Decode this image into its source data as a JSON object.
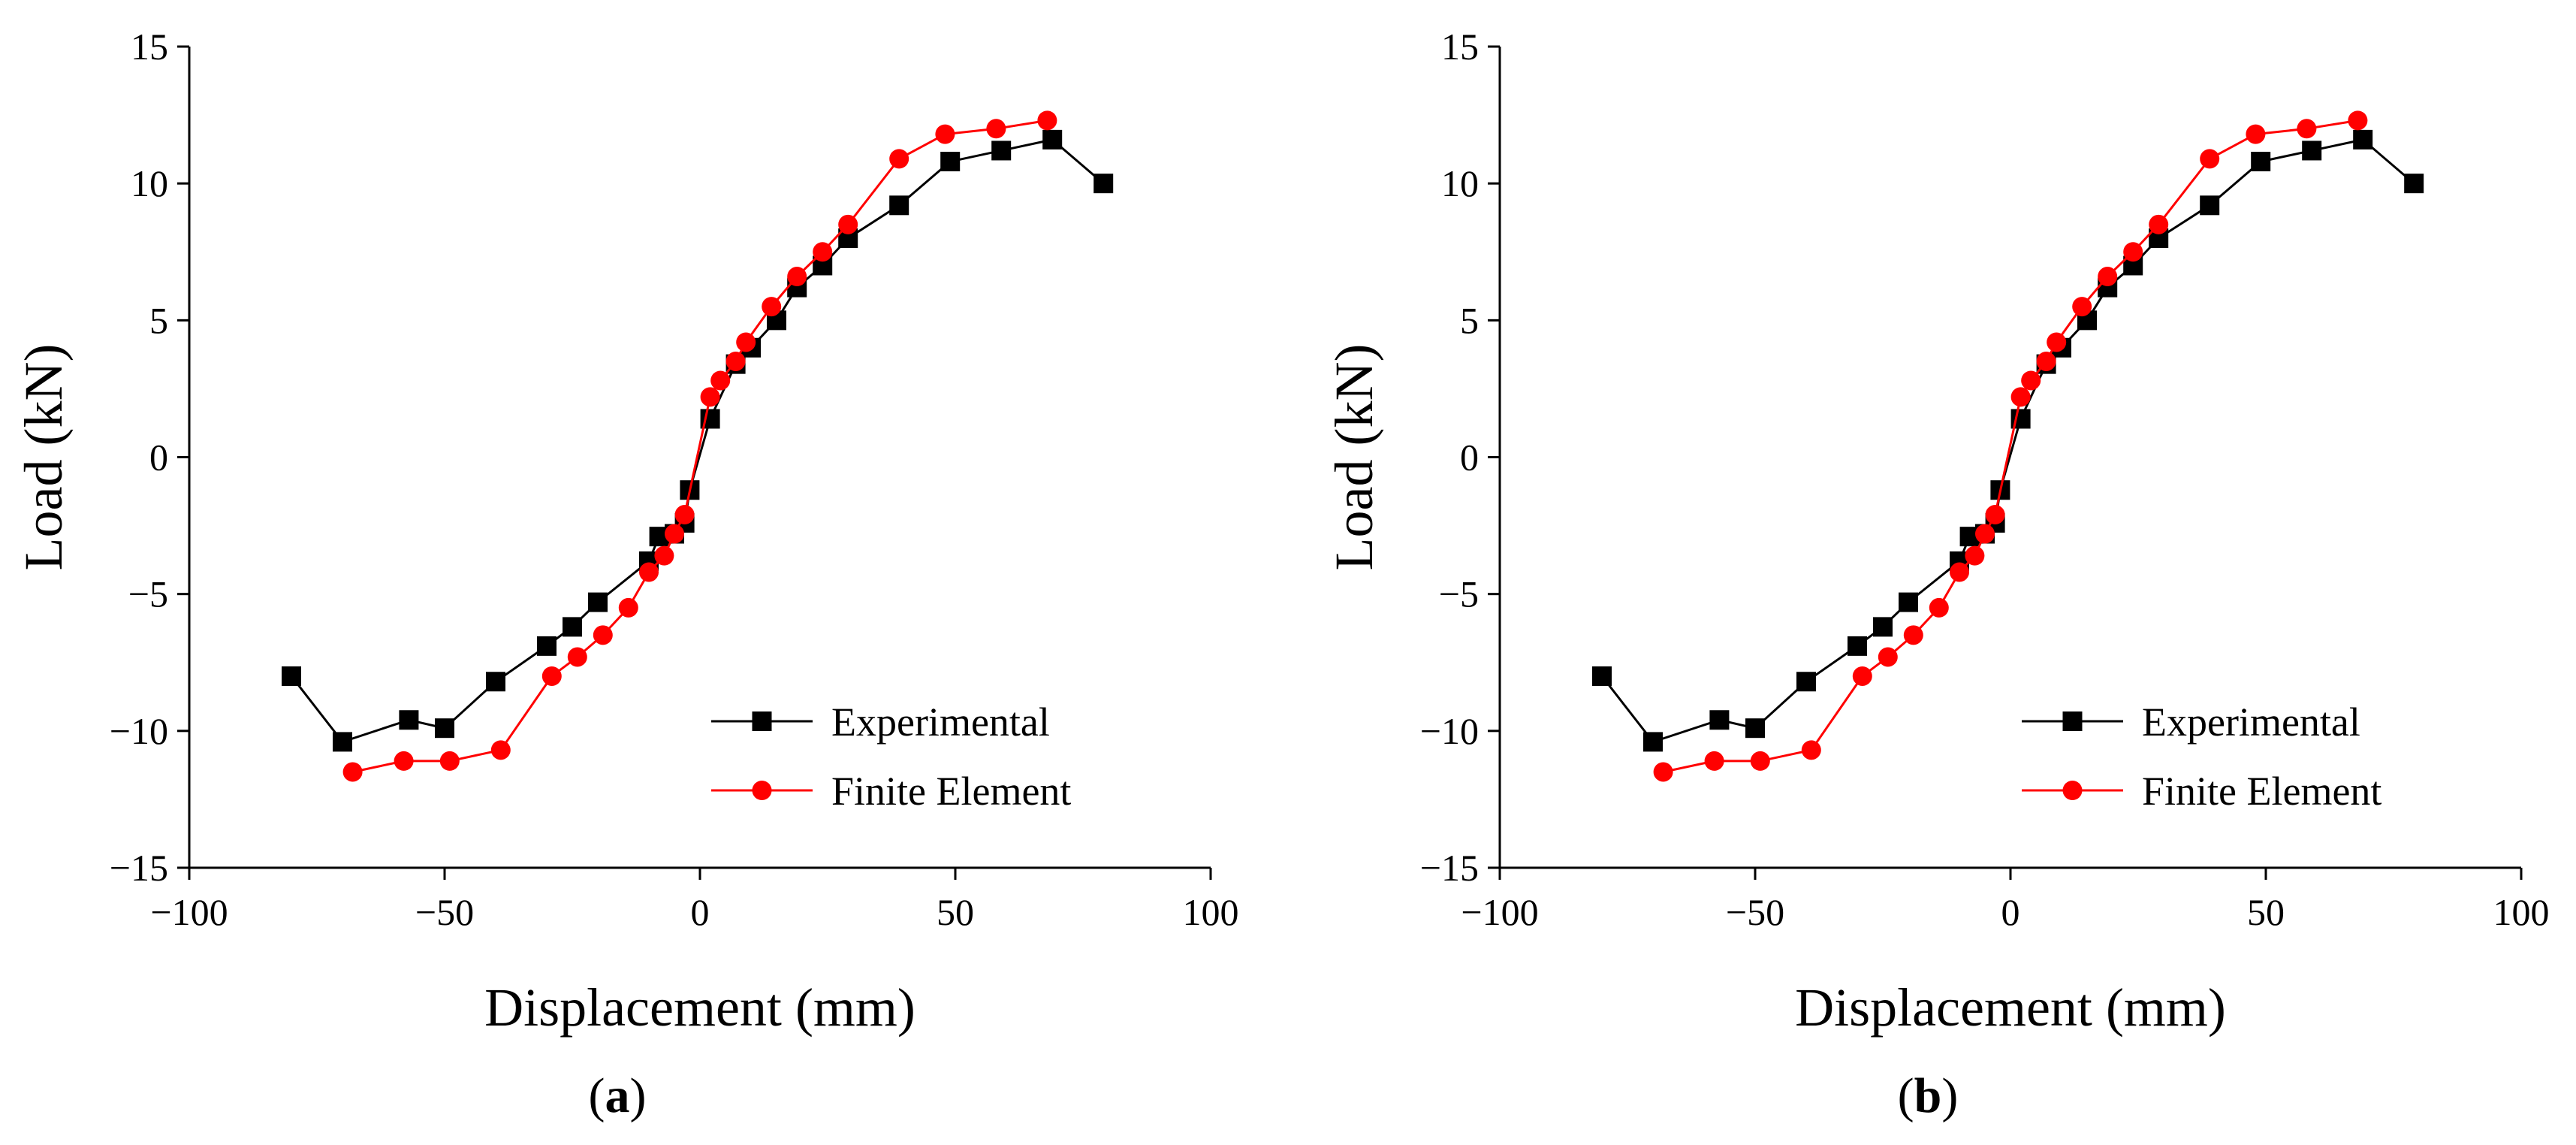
{
  "figure": {
    "panel_labels": [
      {
        "open": "(",
        "letter": "a",
        "close": ")"
      },
      {
        "open": "(",
        "letter": "b",
        "close": ")"
      }
    ]
  },
  "chart_data": [
    {
      "type": "line",
      "panel": "a",
      "title": "",
      "xlabel": "Displacement (mm)",
      "ylabel": "Load (kN)",
      "xlim": [
        -100,
        100
      ],
      "ylim": [
        -15,
        15
      ],
      "xticks": [
        -100,
        -50,
        0,
        50,
        100
      ],
      "xtick_labels": [
        "−100",
        "−50",
        "0",
        "50",
        "100"
      ],
      "yticks": [
        -15,
        -10,
        -5,
        0,
        5,
        10,
        15
      ],
      "ytick_labels": [
        "−15",
        "−10",
        "−5",
        "0",
        "5",
        "10",
        "15"
      ],
      "grid": false,
      "legend_position": "bottom-right",
      "series": [
        {
          "name": "Experimental",
          "color": "#000000",
          "marker": "square",
          "x": [
            -80,
            -70,
            -57,
            -50,
            -40,
            -30,
            -25,
            -20,
            -10,
            -8,
            -5,
            -3,
            -2,
            2,
            7,
            10,
            15,
            19,
            24,
            29,
            39,
            49,
            59,
            69,
            79
          ],
          "y": [
            -8.0,
            -10.4,
            -9.6,
            -9.9,
            -8.2,
            -6.9,
            -6.2,
            -5.3,
            -3.8,
            -2.9,
            -2.8,
            -2.4,
            -1.2,
            1.4,
            3.4,
            4.0,
            5.0,
            6.2,
            7.0,
            8.0,
            9.2,
            10.8,
            11.2,
            11.6,
            10.0
          ]
        },
        {
          "name": "Finite Element",
          "color": "#ff0000",
          "marker": "circle",
          "x": [
            -68,
            -58,
            -49,
            -39,
            -29,
            -24,
            -19,
            -14,
            -10,
            -7,
            -5,
            -3,
            2,
            4,
            7,
            9,
            14,
            19,
            24,
            29,
            39,
            48,
            58,
            68
          ],
          "y": [
            -11.5,
            -11.1,
            -11.1,
            -10.7,
            -8.0,
            -7.3,
            -6.5,
            -5.5,
            -4.2,
            -3.6,
            -2.8,
            -2.1,
            2.2,
            2.8,
            3.5,
            4.2,
            5.5,
            6.6,
            7.5,
            8.5,
            10.9,
            11.8,
            12.0,
            12.3
          ]
        }
      ]
    },
    {
      "type": "line",
      "panel": "b",
      "title": "",
      "xlabel": "Displacement (mm)",
      "ylabel": "Load (kN)",
      "xlim": [
        -100,
        100
      ],
      "ylim": [
        -15,
        15
      ],
      "xticks": [
        -100,
        -50,
        0,
        50,
        100
      ],
      "xtick_labels": [
        "−100",
        "−50",
        "0",
        "50",
        "100"
      ],
      "yticks": [
        -15,
        -10,
        -5,
        0,
        5,
        10,
        15
      ],
      "ytick_labels": [
        "−15",
        "−10",
        "−5",
        "0",
        "5",
        "10",
        "15"
      ],
      "grid": false,
      "legend_position": "bottom-right",
      "series": [
        {
          "name": "Experimental",
          "color": "#000000",
          "marker": "square",
          "x": [
            -80,
            -70,
            -57,
            -50,
            -40,
            -30,
            -25,
            -20,
            -10,
            -8,
            -5,
            -3,
            -2,
            2,
            7,
            10,
            15,
            19,
            24,
            29,
            39,
            49,
            59,
            69,
            79
          ],
          "y": [
            -8.0,
            -10.4,
            -9.6,
            -9.9,
            -8.2,
            -6.9,
            -6.2,
            -5.3,
            -3.8,
            -2.9,
            -2.8,
            -2.4,
            -1.2,
            1.4,
            3.4,
            4.0,
            5.0,
            6.2,
            7.0,
            8.0,
            9.2,
            10.8,
            11.2,
            11.6,
            10.0
          ]
        },
        {
          "name": "Finite Element",
          "color": "#ff0000",
          "marker": "circle",
          "x": [
            -68,
            -58,
            -49,
            -39,
            -29,
            -24,
            -19,
            -14,
            -10,
            -7,
            -5,
            -3,
            2,
            4,
            7,
            9,
            14,
            19,
            24,
            29,
            39,
            48,
            58,
            68
          ],
          "y": [
            -11.5,
            -11.1,
            -11.1,
            -10.7,
            -8.0,
            -7.3,
            -6.5,
            -5.5,
            -4.2,
            -3.6,
            -2.8,
            -2.1,
            2.2,
            2.8,
            3.5,
            4.2,
            5.5,
            6.6,
            7.5,
            8.5,
            10.9,
            11.8,
            12.0,
            12.3
          ]
        }
      ]
    }
  ]
}
